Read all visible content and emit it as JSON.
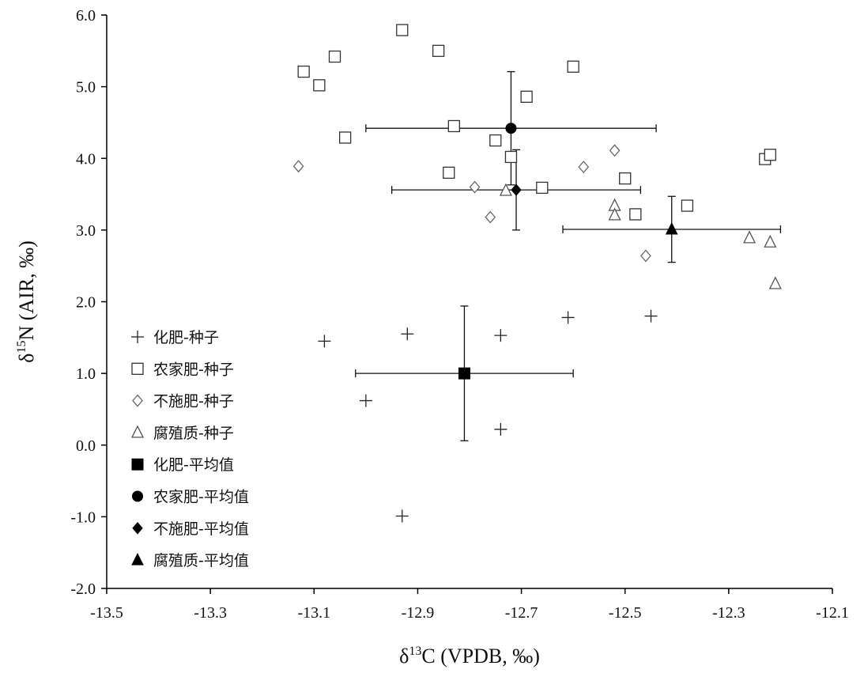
{
  "chart_data": {
    "type": "scatter",
    "xlabel": "δ13C (VPDB, ‰)",
    "ylabel": "δ15N (AIR, ‰)",
    "xlabel_parts": {
      "delta": "δ",
      "sup": "13",
      "rest": "C (VPDB, ‰)"
    },
    "ylabel_parts": {
      "delta": "δ",
      "sup": "15",
      "rest": "N (AIR, ‰)"
    },
    "xlim": [
      -13.5,
      -12.1
    ],
    "ylim": [
      -2.0,
      6.0
    ],
    "xticks": [
      -13.5,
      -13.3,
      -13.1,
      -12.9,
      -12.7,
      -12.5,
      -12.3,
      -12.1
    ],
    "xtick_labels": [
      "-13.5",
      "-13.3",
      "-13.1",
      "-12.9",
      "-12.7",
      "-12.5",
      "-12.3",
      "-12.1"
    ],
    "yticks": [
      -2.0,
      -1.0,
      0.0,
      1.0,
      2.0,
      3.0,
      4.0,
      5.0,
      6.0
    ],
    "ytick_labels": [
      "-2.0",
      "-1.0",
      "0.0",
      "1.0",
      "2.0",
      "3.0",
      "4.0",
      "5.0",
      "6.0"
    ],
    "grid": false,
    "legend_position": "left-middle",
    "series": [
      {
        "name": "化肥-种子",
        "marker": "plus",
        "points": [
          [
            -13.08,
            1.45
          ],
          [
            -12.92,
            1.55
          ],
          [
            -12.74,
            1.53
          ],
          [
            -12.61,
            1.78
          ],
          [
            -12.45,
            1.8
          ],
          [
            -13.0,
            0.62
          ],
          [
            -12.74,
            0.22
          ],
          [
            -12.93,
            -0.99
          ]
        ]
      },
      {
        "name": "农家肥-种子",
        "marker": "square-open",
        "points": [
          [
            -12.93,
            5.79
          ],
          [
            -12.86,
            5.5
          ],
          [
            -13.06,
            5.42
          ],
          [
            -13.12,
            5.21
          ],
          [
            -13.09,
            5.02
          ],
          [
            -12.6,
            5.28
          ],
          [
            -12.69,
            4.86
          ],
          [
            -12.83,
            4.45
          ],
          [
            -13.04,
            4.29
          ],
          [
            -12.75,
            4.25
          ],
          [
            -12.72,
            4.02
          ],
          [
            -12.84,
            3.8
          ],
          [
            -12.66,
            3.59
          ],
          [
            -12.5,
            3.72
          ],
          [
            -12.48,
            3.22
          ],
          [
            -12.38,
            3.34
          ],
          [
            -12.23,
            3.99
          ],
          [
            -12.22,
            4.05
          ]
        ]
      },
      {
        "name": "不施肥-种子",
        "marker": "diamond-open",
        "points": [
          [
            -13.13,
            3.89
          ],
          [
            -12.79,
            3.6
          ],
          [
            -12.76,
            3.18
          ],
          [
            -12.58,
            3.88
          ],
          [
            -12.52,
            4.11
          ],
          [
            -12.46,
            2.64
          ]
        ]
      },
      {
        "name": "腐殖质-种子",
        "marker": "triangle-open",
        "points": [
          [
            -12.73,
            3.55
          ],
          [
            -12.52,
            3.34
          ],
          [
            -12.52,
            3.21
          ],
          [
            -12.26,
            2.89
          ],
          [
            -12.22,
            2.83
          ],
          [
            -12.21,
            2.25
          ]
        ]
      },
      {
        "name": "化肥-平均值",
        "marker": "square-filled",
        "points": [
          [
            -12.81,
            1.0
          ]
        ],
        "xerr": [
          0.21
        ],
        "yerr": [
          0.94
        ]
      },
      {
        "name": "农家肥-平均值",
        "marker": "circle-filled",
        "points": [
          [
            -12.72,
            4.42
          ]
        ],
        "xerr": [
          0.28
        ],
        "yerr": [
          0.79
        ]
      },
      {
        "name": "不施肥-平均值",
        "marker": "diamond-filled",
        "points": [
          [
            -12.71,
            3.56
          ]
        ],
        "xerr": [
          0.24
        ],
        "yerr": [
          0.56
        ]
      },
      {
        "name": "腐殖质-平均值",
        "marker": "triangle-filled",
        "points": [
          [
            -12.41,
            3.01
          ]
        ],
        "xerr": [
          0.21
        ],
        "yerr": [
          0.46
        ]
      }
    ]
  }
}
